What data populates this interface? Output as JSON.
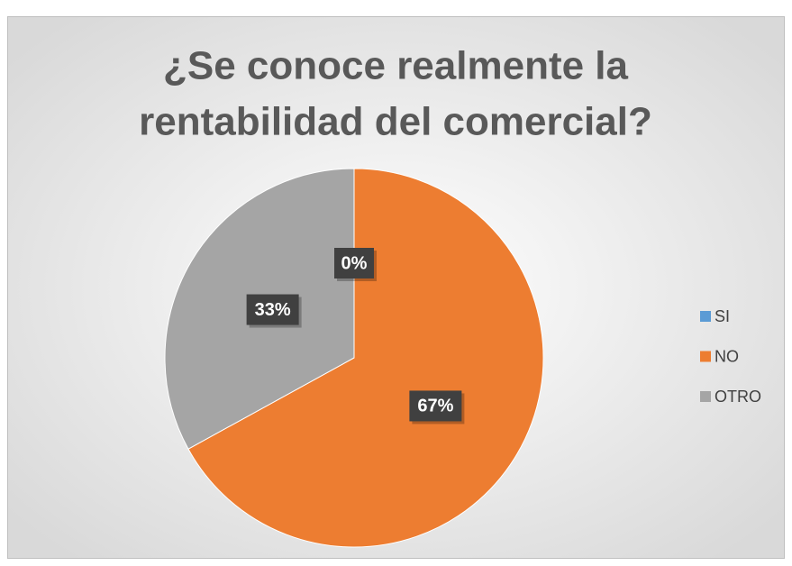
{
  "chart_data": {
    "type": "pie",
    "title": [
      "¿Se conoce realmente la",
      "rentabilidad del comercial?"
    ],
    "categories": [
      "SI",
      "NO",
      "OTRO"
    ],
    "values": [
      0,
      67,
      33
    ],
    "value_labels": [
      "0%",
      "67%",
      "33%"
    ],
    "colors": [
      "#5b9bd5",
      "#ed7d31",
      "#a5a5a5"
    ],
    "legend": "right"
  }
}
